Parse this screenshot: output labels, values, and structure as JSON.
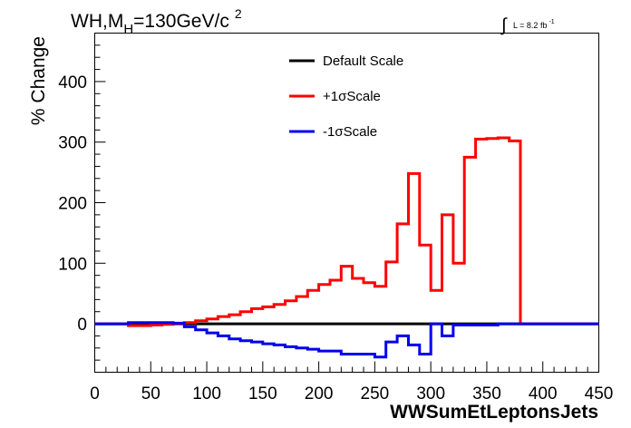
{
  "header": {
    "title_main": "WH,M",
    "title_sub": "H",
    "title_rest": "=130GeV/c",
    "title_sup": "2",
    "lumi_prefix": "L = 8.2 fb",
    "lumi_sup": "-1"
  },
  "chart_data": {
    "type": "line",
    "drawstyle": "step",
    "title": "WH,MH=130GeV/c2",
    "annotation": "L = 8.2 fb-1",
    "xlabel": "WWSumEtLeptonsJets",
    "ylabel": "% Change",
    "xlim": [
      0,
      450
    ],
    "ylim": [
      -80,
      480
    ],
    "xticks": [
      0,
      50,
      100,
      150,
      200,
      250,
      300,
      350,
      400,
      450
    ],
    "yticks": [
      0,
      100,
      200,
      300,
      400
    ],
    "legend_position": "top-center",
    "grid": false,
    "bin_edges": [
      0,
      10,
      20,
      30,
      40,
      50,
      60,
      70,
      80,
      90,
      100,
      110,
      120,
      130,
      140,
      150,
      160,
      170,
      180,
      190,
      200,
      210,
      220,
      230,
      240,
      250,
      260,
      270,
      280,
      290,
      300,
      310,
      320,
      330,
      340,
      350,
      360,
      370,
      380,
      390,
      400,
      410,
      420,
      430,
      440,
      450
    ],
    "series": [
      {
        "name": "Default Scale",
        "color": "#000000",
        "values": [
          0,
          0,
          0,
          0,
          0,
          0,
          0,
          0,
          0,
          0,
          0,
          0,
          0,
          0,
          0,
          0,
          0,
          0,
          0,
          0,
          0,
          0,
          0,
          0,
          0,
          0,
          0,
          0,
          0,
          0,
          0,
          0,
          0,
          0,
          0,
          0,
          0,
          0,
          0,
          0,
          0,
          0,
          0,
          0,
          0
        ]
      },
      {
        "name": "+1σScale",
        "color": "#ff0000",
        "values": [
          0,
          0,
          0,
          -3,
          -3,
          -2,
          -1,
          0,
          2,
          5,
          8,
          12,
          15,
          20,
          25,
          28,
          32,
          38,
          45,
          55,
          65,
          72,
          95,
          75,
          68,
          62,
          102,
          165,
          248,
          130,
          55,
          180,
          100,
          275,
          305,
          306,
          307,
          302,
          0,
          0,
          0,
          0,
          0,
          0,
          0
        ]
      },
      {
        "name": "-1σScale",
        "color": "#0000ee",
        "values": [
          0,
          0,
          0,
          2,
          2,
          2,
          2,
          1,
          -5,
          -10,
          -15,
          -20,
          -25,
          -28,
          -30,
          -33,
          -35,
          -38,
          -40,
          -42,
          -45,
          -45,
          -50,
          -50,
          -50,
          -55,
          -30,
          -20,
          -35,
          -50,
          0,
          -20,
          -2,
          -2,
          -2,
          -2,
          0,
          0,
          0,
          0,
          0,
          0,
          0,
          0,
          0
        ]
      }
    ]
  }
}
